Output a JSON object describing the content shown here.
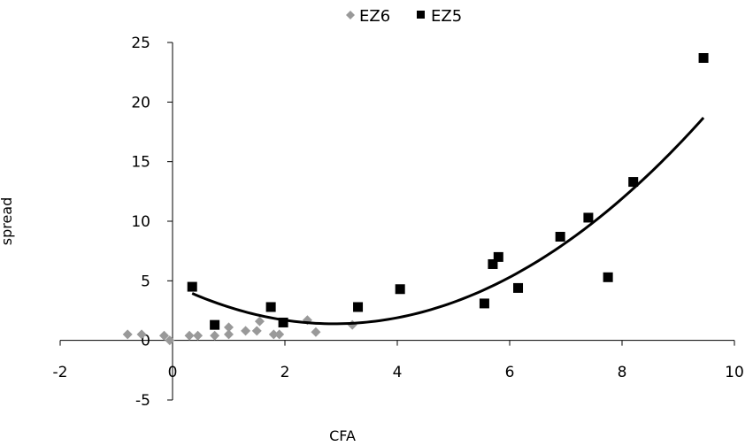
{
  "chart_data": {
    "type": "scatter",
    "xlabel": "CFA",
    "ylabel": "spread",
    "xlim": [
      -2,
      10
    ],
    "ylim": [
      -5,
      25
    ],
    "x_ticks": [
      -2,
      0,
      2,
      4,
      6,
      8,
      10
    ],
    "y_ticks": [
      -5,
      0,
      5,
      10,
      15,
      20,
      25
    ],
    "x_tick_labels": [
      "-2",
      "0",
      "2",
      "4",
      "6",
      "8",
      "10"
    ],
    "y_tick_labels": [
      "-5",
      "0",
      "5",
      "10",
      "15",
      "20",
      "25"
    ],
    "grid": false,
    "legend_position": "top",
    "series": [
      {
        "name": "EZ6",
        "marker": "diamond",
        "color": "#999999",
        "points": [
          [
            -0.8,
            0.5
          ],
          [
            -0.55,
            0.5
          ],
          [
            -0.15,
            0.4
          ],
          [
            -0.05,
            0.0
          ],
          [
            0.3,
            0.4
          ],
          [
            0.45,
            0.4
          ],
          [
            0.75,
            0.4
          ],
          [
            1.0,
            0.5
          ],
          [
            1.0,
            1.1
          ],
          [
            1.3,
            0.8
          ],
          [
            1.5,
            0.8
          ],
          [
            1.55,
            1.6
          ],
          [
            1.8,
            0.5
          ],
          [
            1.9,
            0.5
          ],
          [
            2.4,
            1.7
          ],
          [
            2.55,
            0.7
          ],
          [
            3.2,
            1.3
          ]
        ]
      },
      {
        "name": "EZ5",
        "marker": "square",
        "color": "#000000",
        "points": [
          [
            0.35,
            4.5
          ],
          [
            0.75,
            1.3
          ],
          [
            1.75,
            2.8
          ],
          [
            1.97,
            1.5
          ],
          [
            3.3,
            2.8
          ],
          [
            4.05,
            4.3
          ],
          [
            5.55,
            3.1
          ],
          [
            5.7,
            6.4
          ],
          [
            5.8,
            7.0
          ],
          [
            6.15,
            4.4
          ],
          [
            6.9,
            8.7
          ],
          [
            7.4,
            10.3
          ],
          [
            7.75,
            5.3
          ],
          [
            8.2,
            13.3
          ],
          [
            9.45,
            23.7
          ]
        ]
      }
    ],
    "trendline": {
      "type": "polynomial",
      "series": "EZ5",
      "color": "#000000",
      "coefficients": [
        0.4,
        -2.3,
        4.7
      ],
      "x_range": [
        0.35,
        9.45
      ]
    }
  }
}
